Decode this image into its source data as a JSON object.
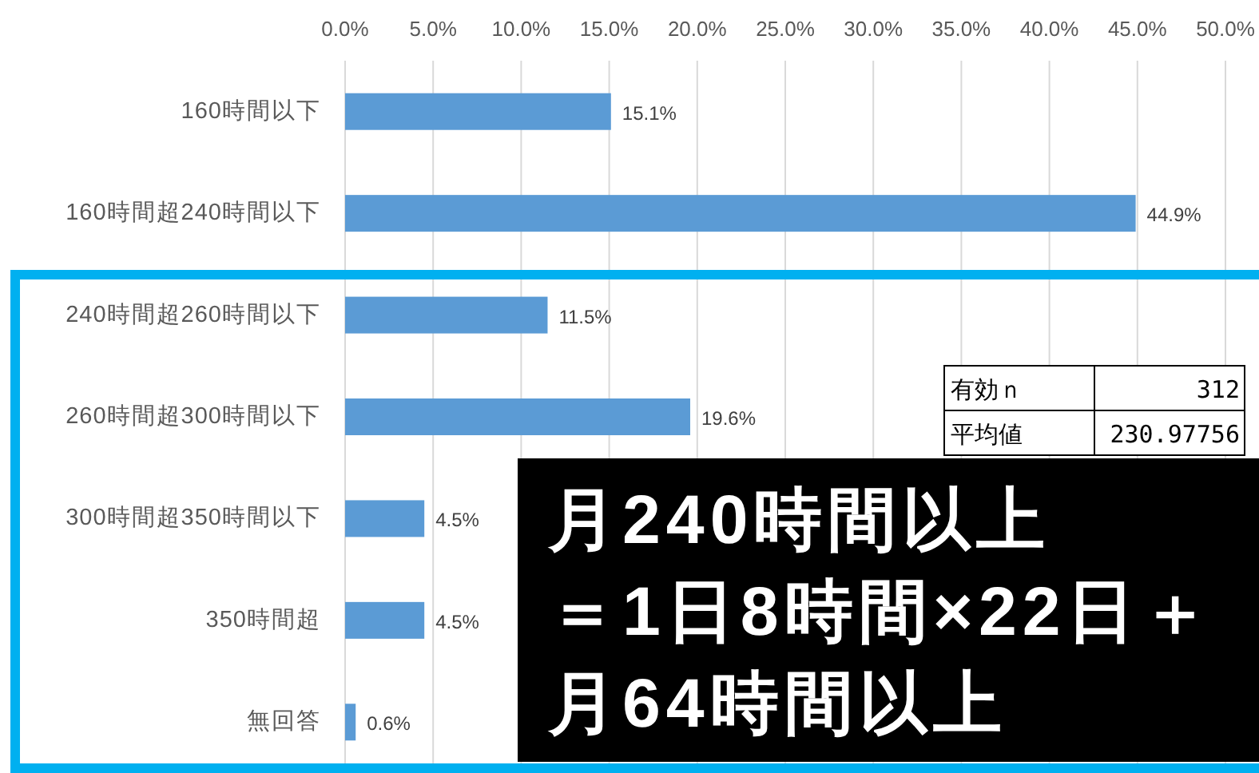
{
  "chart_data": {
    "type": "bar",
    "orientation": "horizontal",
    "categories": [
      "160時間以下",
      "160時間超240時間以下",
      "240時間超260時間以下",
      "260時間超300時間以下",
      "300時間超350時間以下",
      "350時間超",
      "無回答"
    ],
    "values": [
      15.1,
      44.9,
      11.5,
      19.6,
      4.5,
      4.5,
      0.6
    ],
    "value_labels": [
      "15.1%",
      "44.9%",
      "11.5%",
      "19.6%",
      "4.5%",
      "4.5%",
      "0.6%"
    ],
    "color": "#5b9bd5",
    "xlim": [
      0,
      50
    ],
    "xticks": [
      {
        "value": 0,
        "label": "0.0%"
      },
      {
        "value": 5,
        "label": "5.0%"
      },
      {
        "value": 10,
        "label": "10.0%"
      },
      {
        "value": 15,
        "label": "15.0%"
      },
      {
        "value": 20,
        "label": "20.0%"
      },
      {
        "value": 25,
        "label": "25.0%"
      },
      {
        "value": 30,
        "label": "30.0%"
      },
      {
        "value": 35,
        "label": "35.0%"
      },
      {
        "value": 40,
        "label": "40.0%"
      },
      {
        "value": 45,
        "label": "45.0%"
      },
      {
        "value": 50,
        "label": "50.0%"
      }
    ],
    "grid": "x",
    "annotations": [
      "有効ｎ",
      "312",
      "平均値",
      "230.97756",
      "月240時間以上",
      "＝1日8時間×22日＋",
      "月64時間以上"
    ]
  }
}
